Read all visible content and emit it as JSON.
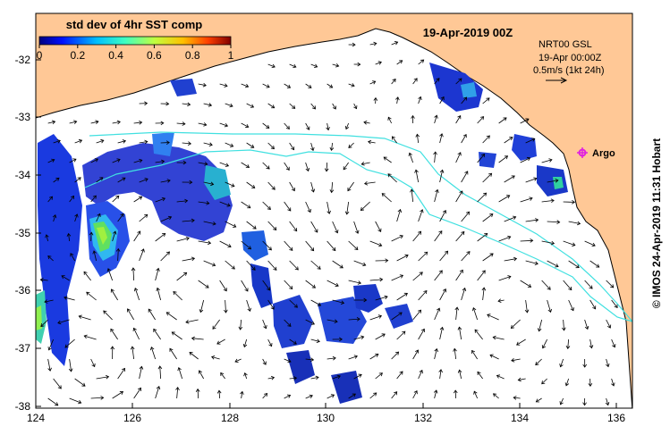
{
  "map": {
    "title": "19-Apr-2019 00Z",
    "colorbar": {
      "title": "std dev of 4hr SST comp",
      "ticks": [
        "0",
        "0.2",
        "0.4",
        "0.6",
        "0.8",
        "1"
      ]
    },
    "info": {
      "line1": "NRT00 GSL",
      "line2": "19-Apr 00:00Z",
      "line3": "0.5m/s (1kt 24h)"
    },
    "argo_label": "Argo",
    "credit": "© IMOS 24-Apr-2019 11:31 Hobart",
    "x_ticks": [
      "124",
      "126",
      "128",
      "130",
      "132",
      "134",
      "136"
    ],
    "y_ticks": [
      "-32",
      "-33",
      "-34",
      "-35",
      "-36",
      "-37",
      "-38"
    ]
  },
  "colors": {
    "land": "#ffc896",
    "ocean": "#ffffff",
    "track": "#40e0e0",
    "argo": "#e020e0"
  },
  "icons": [
    "current-arrow-icon",
    "argo-float-icon"
  ]
}
